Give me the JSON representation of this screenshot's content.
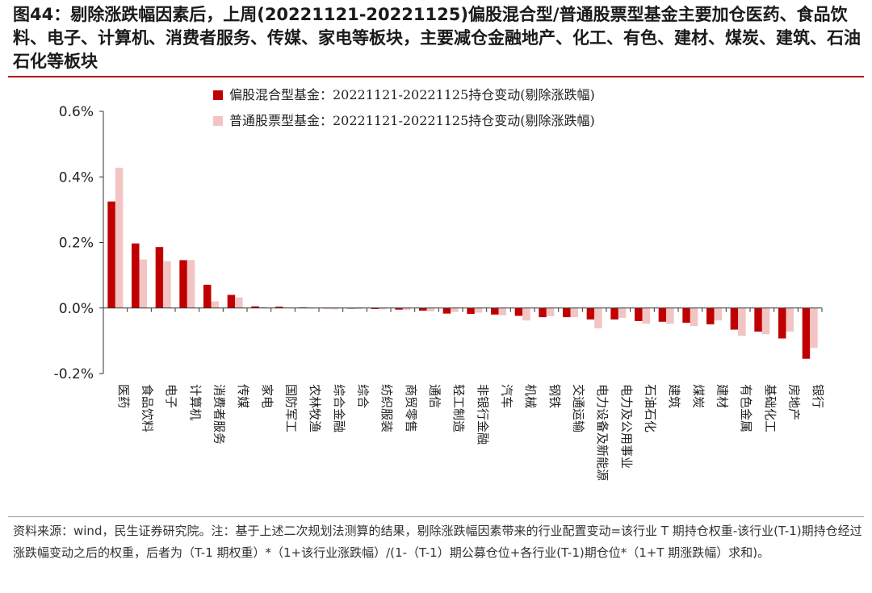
{
  "title": "图44：剔除涨跌幅因素后，上周(20221121-20221125)偏股混合型/普通股票型基金主要加仓医药、食品饮料、电子、计算机、消费者服务、传媒、家电等板块，主要减仓金融地产、化工、有色、建材、煤炭、建筑、石油石化等板块",
  "source_note": "资料来源：wind，民生证券研究院。注：基于上述二次规划法测算的结果，剔除涨跌幅因素带来的行业配置变动=该行业 T 期持仓权重-该行业(T-1)期持仓经过涨跌幅变动之后的权重，后者为（T-1 期权重）*（1+该行业涨跌幅）/(1-（T-1）期公募仓位+各行业(T-1)期仓位*（1+T 期涨跌幅）求和)。",
  "colors": {
    "series1": "#c00000",
    "series2": "#f2c4c4",
    "title_rule": "#b3001b",
    "axis": "#333333"
  },
  "chart_data": {
    "type": "bar",
    "ylim": [
      -0.2,
      0.6
    ],
    "yticks": [
      -0.2,
      0.0,
      0.2,
      0.4,
      0.6
    ],
    "ytick_labels": [
      "-0.2%",
      "0.0%",
      "0.2%",
      "0.4%",
      "0.6%"
    ],
    "unit": "%",
    "legend_position": "top-center",
    "grid": false,
    "categories": [
      "医药",
      "食品饮料",
      "电子",
      "计算机",
      "消费者服务",
      "传媒",
      "家电",
      "国防军工",
      "农林牧渔",
      "综合金融",
      "综合",
      "纺织服装",
      "商贸零售",
      "通信",
      "轻工制造",
      "非银行金融",
      "汽车",
      "机械",
      "钢铁",
      "交通运输",
      "电力设备及新能源",
      "电力及公用事业",
      "石油石化",
      "建筑",
      "煤炭",
      "建材",
      "有色金属",
      "基础化工",
      "房地产",
      "银行"
    ],
    "series": [
      {
        "name": "偏股混合型基金：20221121-20221125持仓变动(剔除涨跌幅)",
        "values": [
          0.325,
          0.197,
          0.186,
          0.146,
          0.071,
          0.04,
          0.005,
          0.004,
          0.002,
          0.0,
          -0.002,
          -0.003,
          -0.005,
          -0.008,
          -0.017,
          -0.018,
          -0.02,
          -0.024,
          -0.028,
          -0.028,
          -0.035,
          -0.035,
          -0.04,
          -0.042,
          -0.045,
          -0.05,
          -0.066,
          -0.072,
          -0.093,
          -0.155
        ]
      },
      {
        "name": "普通股票型基金：20221121-20221125持仓变动(剔除涨跌幅)",
        "values": [
          0.428,
          0.148,
          0.143,
          0.146,
          0.02,
          0.032,
          0.003,
          0.001,
          -0.002,
          -0.004,
          -0.003,
          -0.004,
          -0.006,
          -0.01,
          -0.012,
          -0.014,
          -0.022,
          -0.038,
          -0.025,
          -0.028,
          -0.062,
          -0.03,
          -0.048,
          -0.048,
          -0.055,
          -0.038,
          -0.085,
          -0.08,
          -0.072,
          -0.122
        ]
      }
    ]
  }
}
